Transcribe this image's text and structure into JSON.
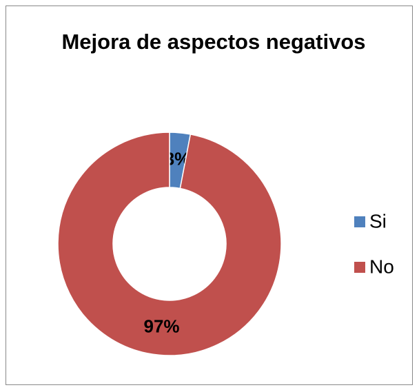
{
  "chart_data": {
    "type": "donut",
    "title": "Mejora de aspectos negativos",
    "categories": [
      "Si",
      "No"
    ],
    "values": [
      3,
      97
    ],
    "value_labels": [
      "3%",
      "97%"
    ],
    "colors": [
      "#4f81bd",
      "#c0504d"
    ],
    "legend": "right"
  }
}
